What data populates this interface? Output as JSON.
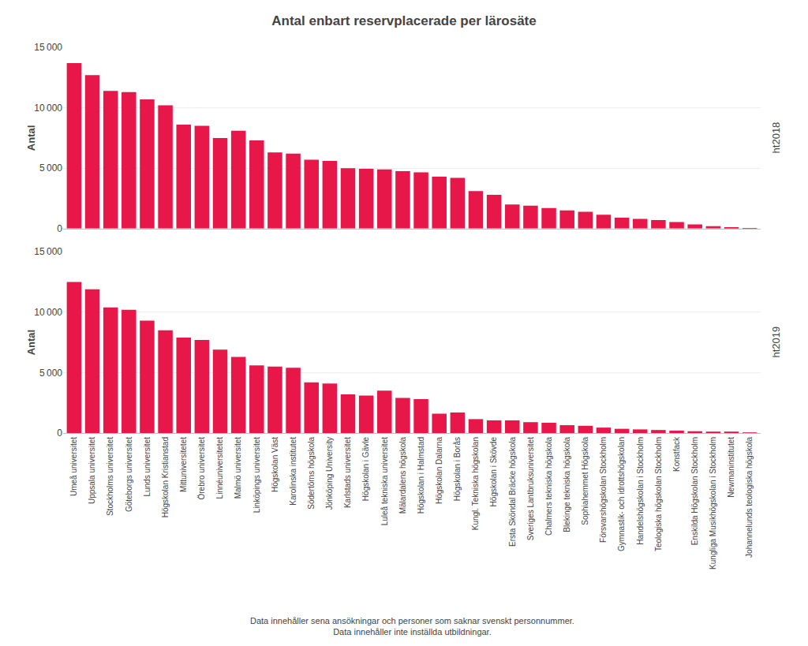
{
  "chart_data": [
    {
      "type": "bar",
      "title": "Antal enbart reservplacerade per lärosäte",
      "ylabel": "Antal",
      "categories": [
        "Umeå universitet",
        "Uppsala universitet",
        "Stockholms universitet",
        "Göteborgs universitet",
        "Lunds universitet",
        "Högskolan Kristianstad",
        "Mittuniversitetet",
        "Örebro universitet",
        "Linnéuniversitetet",
        "Malmö universitet",
        "Linköpings universitet",
        "Högskolan Väst",
        "Karolinska institutet",
        "Södertörns högskola",
        "Jönköping University",
        "Karlstads universitet",
        "Högskolan i Gävle",
        "Luleå tekniska universitet",
        "Mälardalens högskola",
        "Högskolan i Halmstad",
        "Högskolan Dalarna",
        "Högskolan i Borås",
        "Kungl. Tekniska högskolan",
        "Högskolan i Skövde",
        "Ersta Sköndal Bräcke högskola",
        "Sveriges Lantbruksuniversitet",
        "Chalmers tekniska högskola",
        "Blekinge tekniska högskola",
        "Sophiahemmet Högskola",
        "Försvarshögskolan Stockholm",
        "Gymnastik- och idrottshögskolan",
        "Handelshögskolan i Stockholm",
        "Teologiska högskolan Stockholm",
        "Konstfack",
        "Enskilda Högskolan Stockholm",
        "Kungliga Musikhögskolan i Stockholm",
        "Newmaninstitutet",
        "Johannelunds teologiska högskola"
      ],
      "values": [
        13700,
        12700,
        11400,
        11300,
        10700,
        10200,
        8600,
        8500,
        7500,
        8100,
        7300,
        6300,
        6200,
        5700,
        5600,
        5000,
        4950,
        4900,
        4750,
        4650,
        4300,
        4200,
        3100,
        2800,
        2000,
        1900,
        1700,
        1500,
        1400,
        1150,
        900,
        800,
        700,
        550,
        350,
        200,
        100,
        50
      ],
      "color": "#E8174A",
      "ylim": [
        0,
        15000
      ],
      "yticks": [
        0,
        {
          "value": 5000,
          "label": "5 000"
        },
        {
          "value": 10000,
          "label": "10 000"
        },
        {
          "value": 15000,
          "label": "15 000"
        }
      ],
      "grid": true,
      "tick_labels": "y",
      "annotations": [
        "ht2018"
      ]
    },
    {
      "type": "bar",
      "ylabel": "Antal",
      "categories": [
        "Umeå universitet",
        "Uppsala universitet",
        "Stockholms universitet",
        "Göteborgs universitet",
        "Lunds universitet",
        "Högskolan Kristianstad",
        "Mittuniversitetet",
        "Örebro universitet",
        "Linnéuniversitetet",
        "Malmö universitet",
        "Linköpings universitet",
        "Högskolan Väst",
        "Karolinska institutet",
        "Södertörns högskola",
        "Jönköping University",
        "Karlstads universitet",
        "Högskolan i Gävle",
        "Luleå tekniska universitet",
        "Mälardalens högskola",
        "Högskolan i Halmstad",
        "Högskolan Dalarna",
        "Högskolan i Borås",
        "Kungl. Tekniska högskolan",
        "Högskolan i Skövde",
        "Ersta Sköndal Bräcke högskola",
        "Sveriges Lantbruksuniversitet",
        "Chalmers tekniska högskola",
        "Blekinge tekniska högskola",
        "Sophiahemmet Högskola",
        "Försvarshögskolan Stockholm",
        "Gymnastik- och idrottshögskolan",
        "Handelshögskolan i Stockholm",
        "Teologiska högskolan Stockholm",
        "Konstfack",
        "Enskilda Högskolan Stockholm",
        "Kungliga Musikhögskolan i Stockholm",
        "Newmaninstitutet",
        "Johannelunds teologiska högskola"
      ],
      "values": [
        12500,
        11900,
        10400,
        10200,
        9300,
        8500,
        7900,
        7700,
        6900,
        6300,
        5600,
        5500,
        5400,
        4200,
        4100,
        3200,
        3100,
        3500,
        2900,
        2800,
        1600,
        1700,
        1150,
        1050,
        1050,
        900,
        850,
        650,
        600,
        450,
        350,
        300,
        250,
        200,
        150,
        100,
        80,
        50
      ],
      "color": "#E8174A",
      "ylim": [
        0,
        15000
      ],
      "yticks": [
        0,
        {
          "value": 5000,
          "label": "5 000"
        },
        {
          "value": 10000,
          "label": "10 000"
        },
        {
          "value": 15000,
          "label": "15 000"
        }
      ],
      "grid": true,
      "annotations": [
        "ht2019",
        "Data innehåller sena ansökningar och personer som saknar svenskt personnummer.",
        "Data innehåller inte inställda utbildningar."
      ]
    }
  ]
}
